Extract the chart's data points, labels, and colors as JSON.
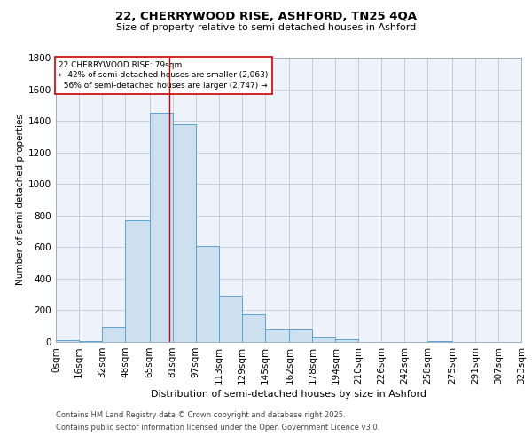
{
  "title_line1": "22, CHERRYWOOD RISE, ASHFORD, TN25 4QA",
  "title_line2": "Size of property relative to semi-detached houses in Ashford",
  "xlabel": "Distribution of semi-detached houses by size in Ashford",
  "ylabel": "Number of semi-detached properties",
  "bin_labels": [
    "0sqm",
    "16sqm",
    "32sqm",
    "48sqm",
    "65sqm",
    "81sqm",
    "97sqm",
    "113sqm",
    "129sqm",
    "145sqm",
    "162sqm",
    "178sqm",
    "194sqm",
    "210sqm",
    "226sqm",
    "242sqm",
    "258sqm",
    "275sqm",
    "291sqm",
    "307sqm",
    "323sqm"
  ],
  "bin_edges": [
    0,
    16,
    32,
    48,
    65,
    81,
    97,
    113,
    129,
    145,
    162,
    178,
    194,
    210,
    226,
    242,
    258,
    275,
    291,
    307,
    323
  ],
  "bar_heights": [
    10,
    5,
    95,
    770,
    1450,
    1380,
    610,
    290,
    175,
    80,
    80,
    30,
    15,
    0,
    0,
    0,
    5,
    0,
    0,
    0,
    0
  ],
  "property_size": 79,
  "property_label": "22 CHERRYWOOD RISE: 79sqm",
  "pct_smaller": "42% of semi-detached houses are smaller (2,063)",
  "pct_larger": "56% of semi-detached houses are larger (2,747)",
  "bar_fill": "#cce0f0",
  "bar_edge": "#5ba3d0",
  "vline_color": "#cc0000",
  "annotation_box_edge": "#cc0000",
  "background_color": "#eef2fa",
  "grid_color": "#c0c8d8",
  "ylim": [
    0,
    1800
  ],
  "yticks": [
    0,
    200,
    400,
    600,
    800,
    1000,
    1200,
    1400,
    1600,
    1800
  ],
  "footer_line1": "Contains HM Land Registry data © Crown copyright and database right 2025.",
  "footer_line2": "Contains public sector information licensed under the Open Government Licence v3.0."
}
